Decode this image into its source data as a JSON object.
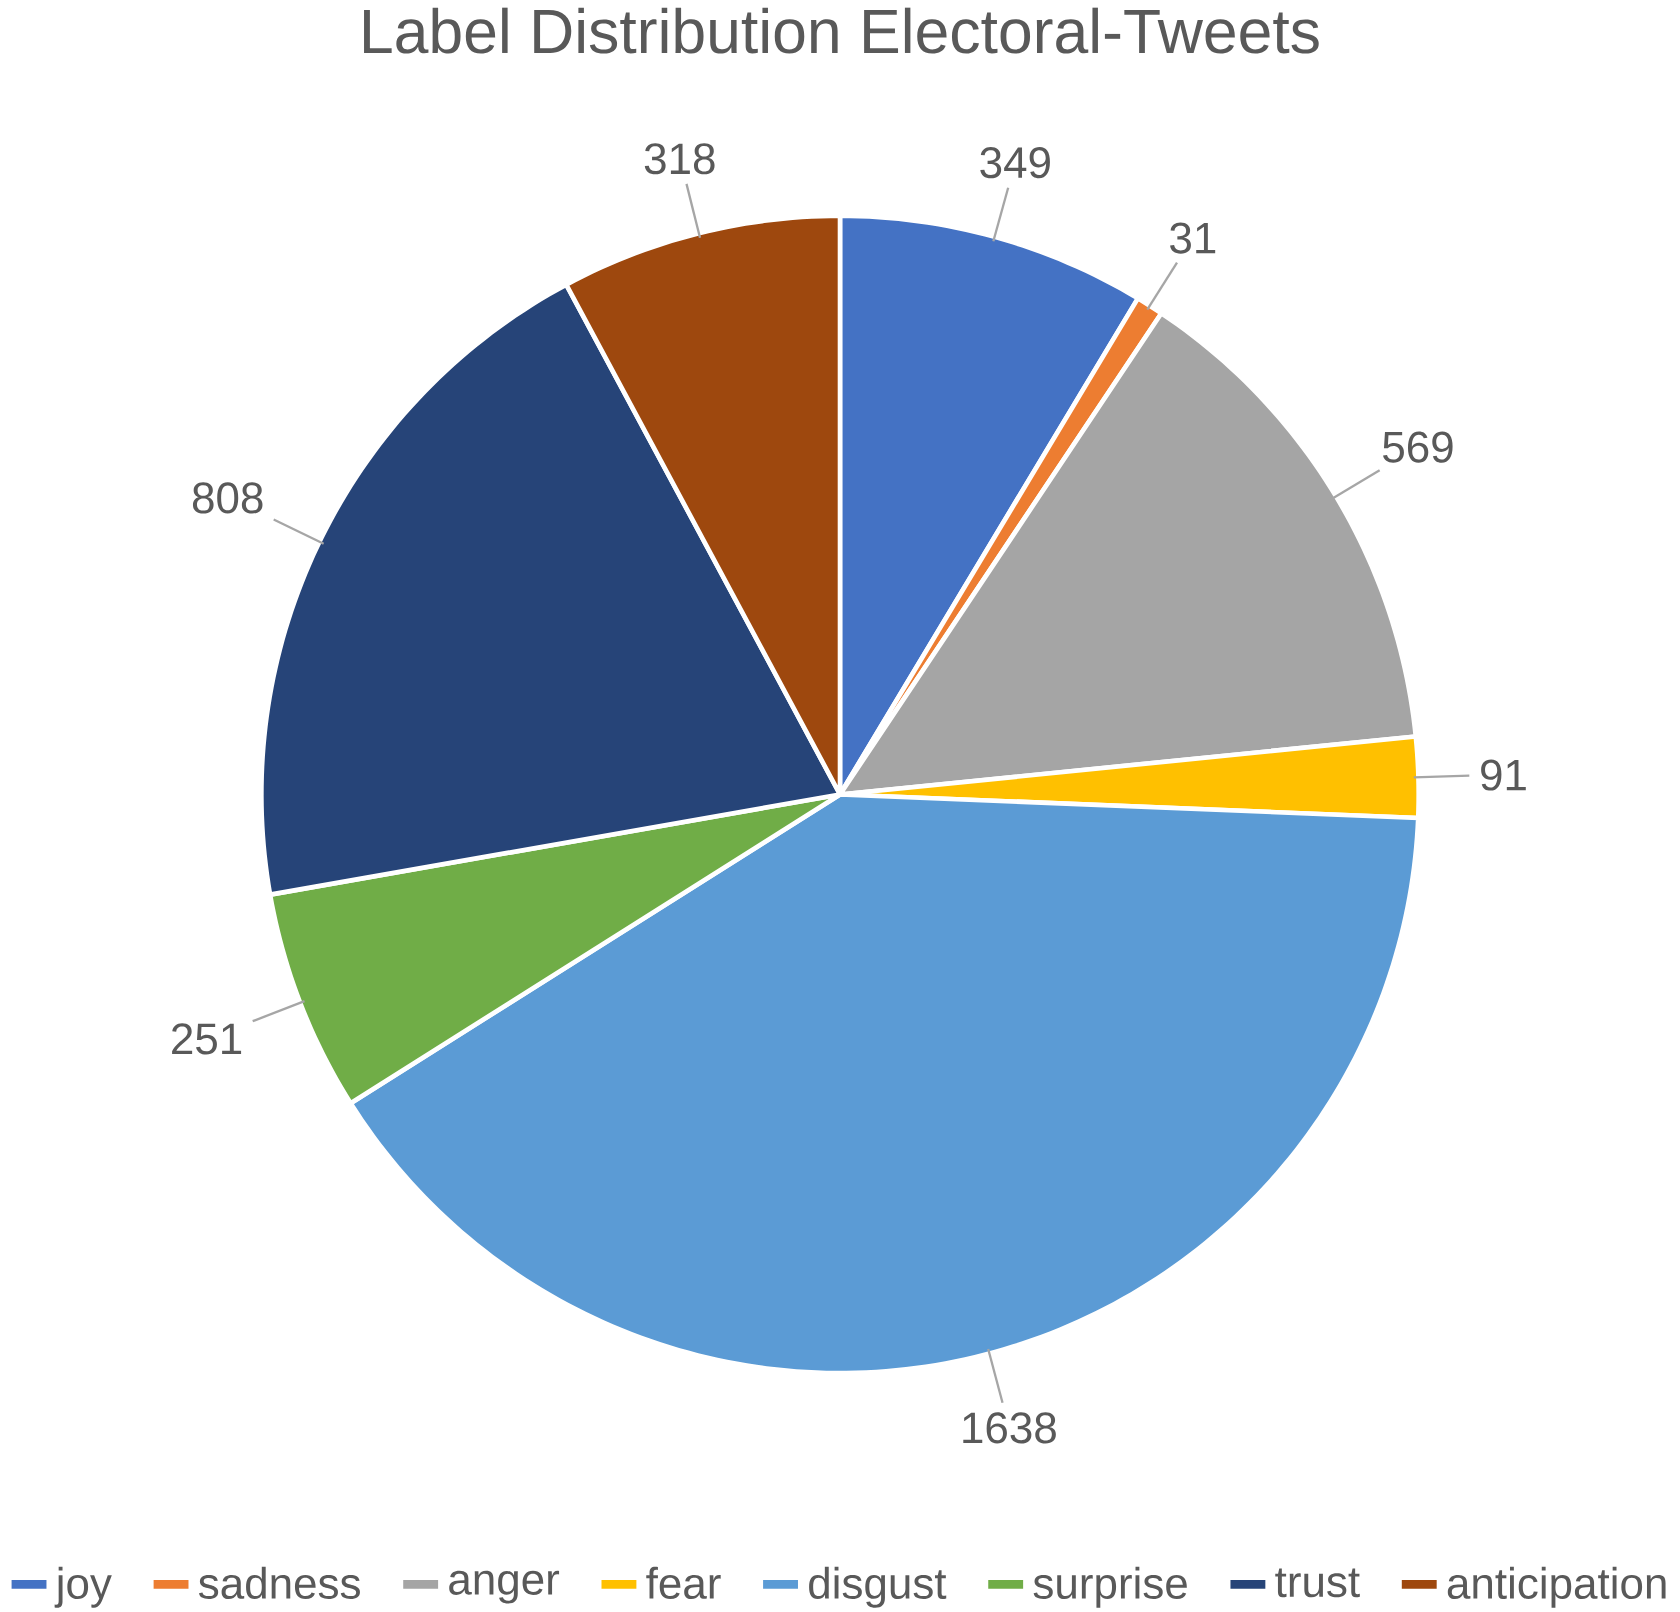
{
  "chart_data": {
    "type": "pie",
    "title": "Label Distribution Electoral-Tweets",
    "categories": [
      "joy",
      "sadness",
      "anger",
      "fear",
      "disgust",
      "surprise",
      "trust",
      "anticipation"
    ],
    "values": [
      349,
      31,
      569,
      91,
      1638,
      251,
      808,
      318
    ],
    "colors": [
      "#4472c4",
      "#ed7d31",
      "#a5a5a5",
      "#ffc000",
      "#5b9bd5",
      "#70ad47",
      "#264478",
      "#9e480e"
    ],
    "data_labels": true,
    "legend": "bottom"
  }
}
